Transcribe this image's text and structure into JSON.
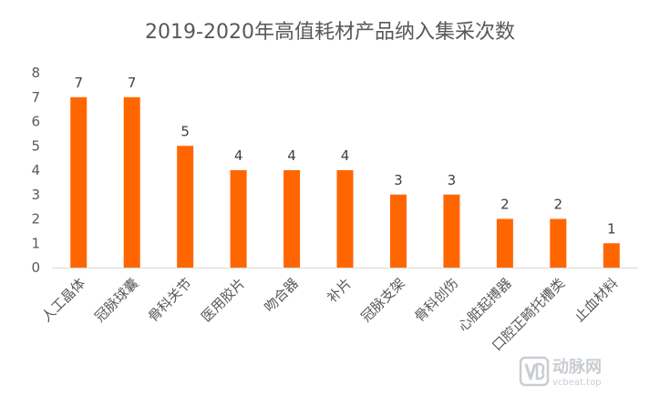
{
  "chart_data": {
    "type": "bar",
    "title": "2019-2020年高值耗材产品纳入集采次数",
    "categories": [
      "人工晶体",
      "冠脉球囊",
      "骨科关节",
      "医用胶片",
      "吻合器",
      "补片",
      "冠脉支架",
      "骨科创伤",
      "心脏起搏器",
      "口腔正畸托槽类",
      "止血材料"
    ],
    "values": [
      7,
      7,
      5,
      4,
      4,
      4,
      3,
      3,
      2,
      2,
      1
    ],
    "ylim": [
      0,
      8
    ],
    "yticks": [
      0,
      1,
      2,
      3,
      4,
      5,
      6,
      7,
      8
    ],
    "bar_color": "#ff6600",
    "grid": false,
    "data_labels": true
  },
  "watermark": {
    "logo_text": "VB",
    "brand": "动脉网",
    "url": "vcbeat.top"
  }
}
